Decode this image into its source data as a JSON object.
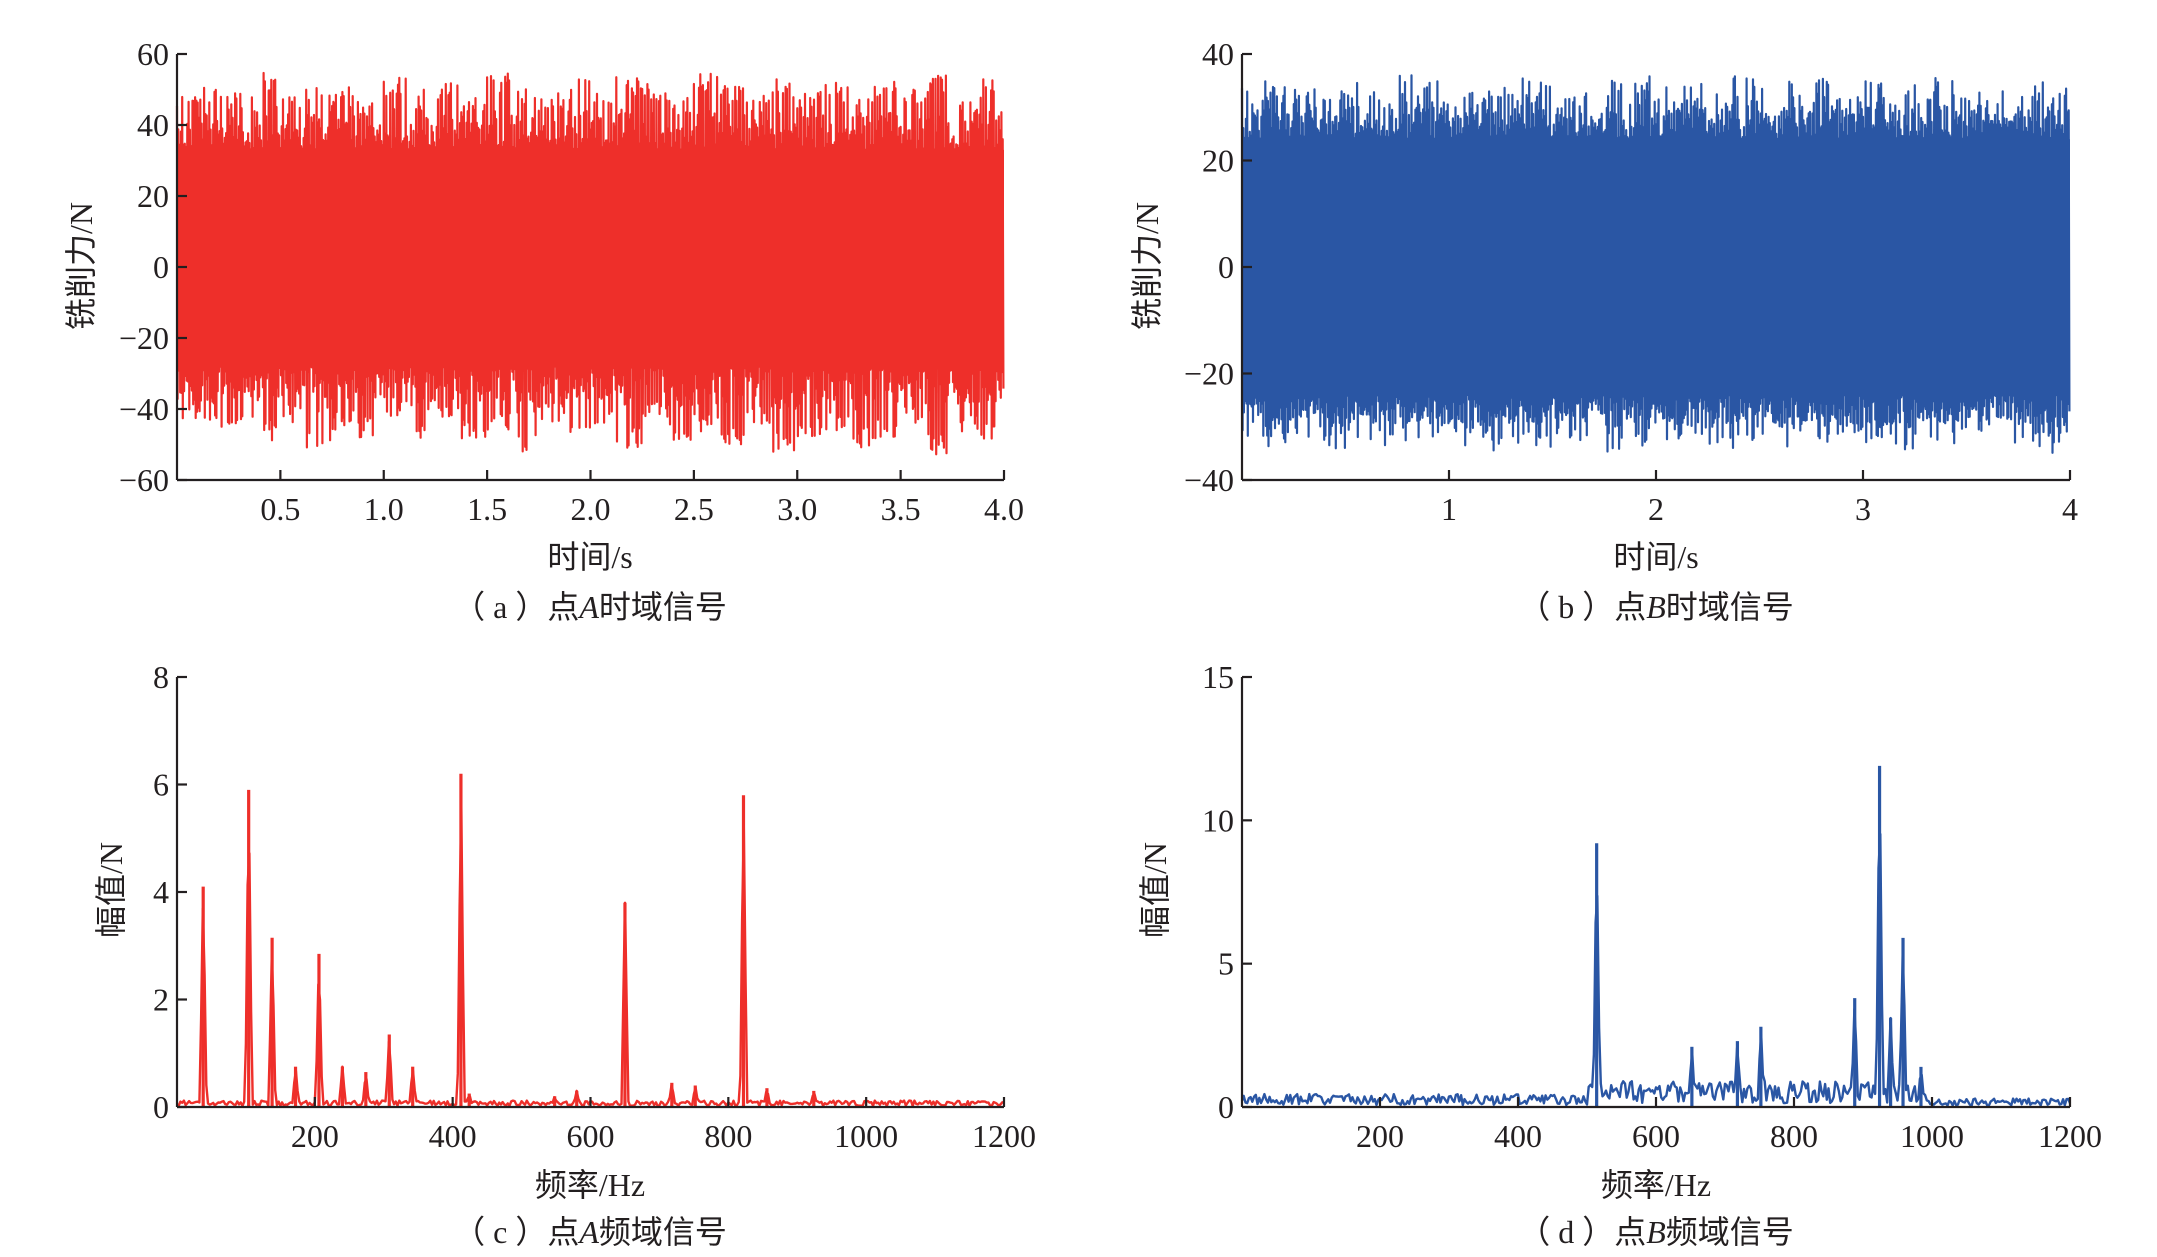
{
  "chart_data": [
    {
      "id": "a",
      "type": "line",
      "style": "dense-oscillation",
      "color": "#ee2f2a",
      "caption": {
        "prefix": "（ a ）点",
        "point": "A",
        "suffix": "时域信号"
      },
      "xlabel": "时间/s",
      "ylabel": "铣削力/N",
      "xlim": [
        0,
        4.0
      ],
      "ylim": [
        -60,
        60
      ],
      "xticks": [
        {
          "value": 0.5,
          "label": "0.5"
        },
        {
          "value": 1.0,
          "label": "1.0"
        },
        {
          "value": 1.5,
          "label": "1.5"
        },
        {
          "value": 2.0,
          "label": "2.0"
        },
        {
          "value": 2.5,
          "label": "2.5"
        },
        {
          "value": 3.0,
          "label": "3.0"
        },
        {
          "value": 3.5,
          "label": "3.5"
        },
        {
          "value": 4.0,
          "label": "4.0"
        }
      ],
      "yticks": [
        {
          "value": 60,
          "label": "60"
        },
        {
          "value": 40,
          "label": "40"
        },
        {
          "value": 20,
          "label": "20"
        },
        {
          "value": 0,
          "label": "0"
        },
        {
          "value": -20,
          "label": "−20"
        },
        {
          "value": -40,
          "label": "−40"
        },
        {
          "value": -60,
          "label": "−60"
        }
      ],
      "signal": {
        "x_start": 0,
        "x_end": 4.0,
        "cycles": 640,
        "peak_upper": [
          48,
          52,
          50,
          55,
          49,
          53,
          51,
          47,
          54,
          50,
          52,
          48,
          55,
          51,
          49,
          53,
          50,
          54,
          52,
          48,
          55,
          51,
          49,
          53,
          50,
          52,
          48,
          54,
          51,
          55,
          49,
          53
        ],
        "peak_lower": [
          -43,
          -47,
          -45,
          -49,
          -44,
          -52,
          -46,
          -48,
          -42,
          -50,
          -45,
          -49,
          -47,
          -52,
          -44,
          -48,
          -46,
          -51,
          -43,
          -49,
          -47,
          -50,
          -45,
          -52,
          -48,
          -46,
          -51,
          -49,
          -44,
          -53,
          -47,
          -50
        ],
        "band_upper": 33,
        "band_lower": -28
      }
    },
    {
      "id": "b",
      "type": "line",
      "style": "dense-oscillation",
      "color": "#2a56a4",
      "caption": {
        "prefix": "（ b ）点",
        "point": "B",
        "suffix": "时域信号"
      },
      "xlabel": "时间/s",
      "ylabel": "铣削力/N",
      "xlim": [
        0,
        4
      ],
      "ylim": [
        -40,
        40
      ],
      "xticks": [
        {
          "value": 1,
          "label": "1"
        },
        {
          "value": 2,
          "label": "2"
        },
        {
          "value": 3,
          "label": "3"
        },
        {
          "value": 4,
          "label": "4"
        }
      ],
      "yticks": [
        {
          "value": 40,
          "label": "40"
        },
        {
          "value": 20,
          "label": "20"
        },
        {
          "value": 0,
          "label": "0"
        },
        {
          "value": -20,
          "label": "−20"
        },
        {
          "value": -40,
          "label": "−40"
        }
      ],
      "signal": {
        "x_start": 0,
        "x_end": 4,
        "cycles": 640,
        "peak_upper": [
          35,
          34,
          36,
          33,
          35,
          34,
          36,
          35,
          33,
          34,
          36,
          35,
          34,
          33,
          35,
          36,
          34,
          35,
          33,
          36,
          34,
          35,
          36,
          33,
          35,
          34,
          36,
          35,
          34,
          33,
          35,
          34
        ],
        "peak_lower": [
          -33,
          -34,
          -32,
          -35,
          -33,
          -34,
          -33,
          -32,
          -34,
          -35,
          -33,
          -34,
          -32,
          -33,
          -35,
          -34,
          -33,
          -32,
          -34,
          -33,
          -35,
          -34,
          -33,
          -32,
          -34,
          -35,
          -33,
          -34,
          -32,
          -33,
          -34,
          -35
        ],
        "band_upper": 24,
        "band_lower": -24
      }
    },
    {
      "id": "c",
      "type": "line",
      "style": "spectrum",
      "color": "#ee2f2a",
      "caption": {
        "prefix": "（ c ）点",
        "point": "A",
        "suffix": "频域信号"
      },
      "xlabel": "频率/Hz",
      "ylabel": "幅值/N",
      "xlim": [
        0,
        1200
      ],
      "ylim": [
        0,
        8
      ],
      "xticks": [
        {
          "value": 200,
          "label": "200"
        },
        {
          "value": 400,
          "label": "400"
        },
        {
          "value": 600,
          "label": "600"
        },
        {
          "value": 800,
          "label": "800"
        },
        {
          "value": 1000,
          "label": "1000"
        },
        {
          "value": 1200,
          "label": "1200"
        }
      ],
      "yticks": [
        {
          "value": 8,
          "label": "8"
        },
        {
          "value": 6,
          "label": "6"
        },
        {
          "value": 4,
          "label": "4"
        },
        {
          "value": 2,
          "label": "2"
        },
        {
          "value": 0,
          "label": "0"
        }
      ],
      "noise_floor": 0.12,
      "peaks": [
        {
          "x": 38,
          "y": 4.1
        },
        {
          "x": 104,
          "y": 5.9
        },
        {
          "x": 138,
          "y": 3.15
        },
        {
          "x": 172,
          "y": 0.75
        },
        {
          "x": 206,
          "y": 2.85
        },
        {
          "x": 240,
          "y": 0.75
        },
        {
          "x": 274,
          "y": 0.65
        },
        {
          "x": 308,
          "y": 1.35
        },
        {
          "x": 342,
          "y": 0.75
        },
        {
          "x": 412,
          "y": 6.2
        },
        {
          "x": 424,
          "y": 0.25
        },
        {
          "x": 548,
          "y": 0.2
        },
        {
          "x": 580,
          "y": 0.3
        },
        {
          "x": 650,
          "y": 3.8
        },
        {
          "x": 718,
          "y": 0.45
        },
        {
          "x": 752,
          "y": 0.4
        },
        {
          "x": 822,
          "y": 5.8
        },
        {
          "x": 856,
          "y": 0.35
        },
        {
          "x": 924,
          "y": 0.3
        }
      ]
    },
    {
      "id": "d",
      "type": "line",
      "style": "spectrum",
      "color": "#2a56a4",
      "caption": {
        "prefix": "（ d ）点",
        "point": "B",
        "suffix": "频域信号"
      },
      "xlabel": "频率/Hz",
      "ylabel": "幅值/N",
      "xlim": [
        0,
        1200
      ],
      "ylim": [
        0,
        15
      ],
      "xticks": [
        {
          "value": 200,
          "label": "200"
        },
        {
          "value": 400,
          "label": "400"
        },
        {
          "value": 600,
          "label": "600"
        },
        {
          "value": 800,
          "label": "800"
        },
        {
          "value": 1000,
          "label": "1000"
        },
        {
          "value": 1200,
          "label": "1200"
        }
      ],
      "yticks": [
        {
          "value": 15,
          "label": "15"
        },
        {
          "value": 10,
          "label": "10"
        },
        {
          "value": 5,
          "label": "5"
        },
        {
          "value": 0,
          "label": "0"
        }
      ],
      "noise_bands": [
        {
          "from": 0,
          "to": 500,
          "level": 0.45
        },
        {
          "from": 500,
          "to": 990,
          "level": 0.9
        },
        {
          "from": 990,
          "to": 1200,
          "level": 0.3
        }
      ],
      "peaks": [
        {
          "x": 514,
          "y": 9.2
        },
        {
          "x": 652,
          "y": 2.1
        },
        {
          "x": 718,
          "y": 2.3
        },
        {
          "x": 752,
          "y": 2.8
        },
        {
          "x": 888,
          "y": 3.8
        },
        {
          "x": 924,
          "y": 11.9
        },
        {
          "x": 940,
          "y": 3.1
        },
        {
          "x": 958,
          "y": 5.9
        },
        {
          "x": 984,
          "y": 1.4
        }
      ]
    }
  ]
}
